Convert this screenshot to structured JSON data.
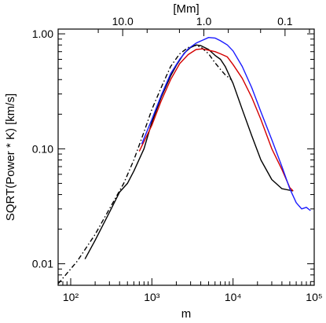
{
  "chart_data": {
    "type": "line",
    "xlabel": "m",
    "ylabel": "SQRT(Power * K)  [km/s]",
    "top_axis_label": "[Mm]",
    "x_scale": "log",
    "y_scale": "log",
    "xlim": [
      70,
      100000
    ],
    "ylim": [
      0.0065,
      1.1
    ],
    "x_ticks": [
      {
        "value": 100,
        "label": "10²"
      },
      {
        "value": 1000,
        "label": "10³"
      },
      {
        "value": 10000,
        "label": "10⁴"
      },
      {
        "value": 100000,
        "label": "10⁵"
      }
    ],
    "y_ticks": [
      {
        "value": 0.01,
        "label": "0.01"
      },
      {
        "value": 0.1,
        "label": "0.10"
      },
      {
        "value": 1.0,
        "label": "1.00"
      }
    ],
    "top_ticks": [
      {
        "value": 10.0,
        "label": "10.0"
      },
      {
        "value": 1.0,
        "label": "1.0"
      },
      {
        "value": 0.1,
        "label": "0.1"
      }
    ],
    "grid": false,
    "series": [
      {
        "color": "#000000",
        "dash": "6,3,1.5,3",
        "points": [
          [
            70,
            0.0067
          ],
          [
            120,
            0.0105
          ],
          [
            200,
            0.018
          ],
          [
            300,
            0.03
          ],
          [
            450,
            0.05
          ],
          [
            600,
            0.08
          ],
          [
            800,
            0.14
          ],
          [
            1000,
            0.22
          ],
          [
            1300,
            0.34
          ],
          [
            1700,
            0.52
          ],
          [
            2200,
            0.67
          ],
          [
            2800,
            0.76
          ],
          [
            3400,
            0.79
          ],
          [
            4000,
            0.77
          ],
          [
            5000,
            0.67
          ],
          [
            6000,
            0.56
          ],
          [
            7000,
            0.49
          ],
          [
            8000,
            0.44
          ],
          [
            9500,
            0.4
          ]
        ]
      },
      {
        "color": "#000000",
        "dash": "",
        "points": [
          [
            150,
            0.011
          ],
          [
            200,
            0.016
          ],
          [
            300,
            0.028
          ],
          [
            400,
            0.042
          ],
          [
            500,
            0.05
          ],
          [
            600,
            0.064
          ],
          [
            800,
            0.1
          ],
          [
            1000,
            0.17
          ],
          [
            1300,
            0.28
          ],
          [
            1700,
            0.43
          ],
          [
            2000,
            0.53
          ],
          [
            2500,
            0.68
          ],
          [
            3000,
            0.76
          ],
          [
            3500,
            0.8
          ],
          [
            4000,
            0.79
          ],
          [
            5000,
            0.73
          ],
          [
            6000,
            0.65
          ],
          [
            7000,
            0.6
          ],
          [
            8000,
            0.52
          ],
          [
            10000,
            0.37
          ],
          [
            13000,
            0.22
          ],
          [
            17000,
            0.13
          ],
          [
            22000,
            0.08
          ],
          [
            30000,
            0.054
          ],
          [
            40000,
            0.045
          ],
          [
            55000,
            0.043
          ]
        ]
      },
      {
        "color": "#d40000",
        "dash": "",
        "points": [
          [
            700,
            0.095
          ],
          [
            1000,
            0.16
          ],
          [
            1300,
            0.26
          ],
          [
            1700,
            0.4
          ],
          [
            2200,
            0.55
          ],
          [
            2800,
            0.66
          ],
          [
            3500,
            0.73
          ],
          [
            4200,
            0.74
          ],
          [
            5000,
            0.72
          ],
          [
            6000,
            0.7
          ],
          [
            7000,
            0.67
          ],
          [
            8500,
            0.63
          ],
          [
            10000,
            0.54
          ],
          [
            13000,
            0.41
          ],
          [
            17000,
            0.28
          ],
          [
            22000,
            0.18
          ],
          [
            30000,
            0.1
          ],
          [
            40000,
            0.066
          ],
          [
            50000,
            0.046
          ],
          [
            55000,
            0.043
          ]
        ]
      },
      {
        "color": "#1a1aff",
        "dash": "",
        "points": [
          [
            750,
            0.11
          ],
          [
            1000,
            0.18
          ],
          [
            1300,
            0.29
          ],
          [
            1700,
            0.45
          ],
          [
            2200,
            0.6
          ],
          [
            2800,
            0.74
          ],
          [
            3500,
            0.83
          ],
          [
            4200,
            0.88
          ],
          [
            5000,
            0.93
          ],
          [
            6000,
            0.92
          ],
          [
            7000,
            0.87
          ],
          [
            8500,
            0.8
          ],
          [
            10000,
            0.71
          ],
          [
            13000,
            0.52
          ],
          [
            17000,
            0.34
          ],
          [
            22000,
            0.21
          ],
          [
            30000,
            0.12
          ],
          [
            40000,
            0.07
          ],
          [
            50000,
            0.045
          ],
          [
            60000,
            0.034
          ],
          [
            70000,
            0.03
          ],
          [
            80000,
            0.031
          ],
          [
            90000,
            0.029
          ]
        ]
      }
    ]
  }
}
